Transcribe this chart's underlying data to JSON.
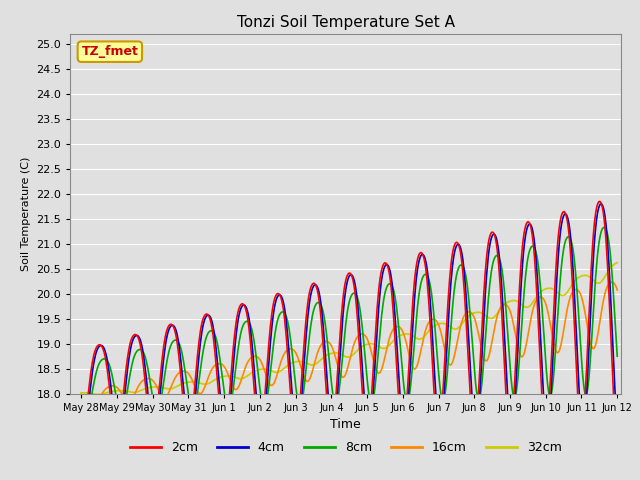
{
  "title": "Tonzi Soil Temperature Set A",
  "xlabel": "Time",
  "ylabel": "Soil Temperature (C)",
  "ylim": [
    18.0,
    25.2
  ],
  "yticks": [
    18.0,
    18.5,
    19.0,
    19.5,
    20.0,
    20.5,
    21.0,
    21.5,
    22.0,
    22.5,
    23.0,
    23.5,
    24.0,
    24.5,
    25.0
  ],
  "background_color": "#e0e0e0",
  "plot_bg_color": "#e0e0e0",
  "grid_color": "#ffffff",
  "annotation_text": "TZ_fmet",
  "annotation_bg": "#ffff99",
  "annotation_border": "#cc9900",
  "lines": {
    "2cm": {
      "color": "#ff0000",
      "lw": 1.2
    },
    "4cm": {
      "color": "#0000cc",
      "lw": 1.2
    },
    "8cm": {
      "color": "#00aa00",
      "lw": 1.2
    },
    "16cm": {
      "color": "#ff8800",
      "lw": 1.2
    },
    "32cm": {
      "color": "#cccc00",
      "lw": 1.2
    }
  },
  "xtick_labels": [
    "May 28",
    "May 29",
    "May 30",
    "May 31",
    "Jun 1",
    "Jun 2",
    "Jun 3",
    "Jun 4",
    "Jun 5",
    "Jun 6",
    "Jun 7",
    "Jun 8",
    "Jun 9",
    "Jun 10",
    "Jun 11",
    "Jun 12"
  ],
  "legend_labels": [
    "2cm",
    "4cm",
    "8cm",
    "16cm",
    "32cm"
  ],
  "legend_colors": [
    "#ff0000",
    "#0000cc",
    "#00aa00",
    "#ff8800",
    "#cccc00"
  ],
  "n_days": 15,
  "samples_per_day": 48
}
